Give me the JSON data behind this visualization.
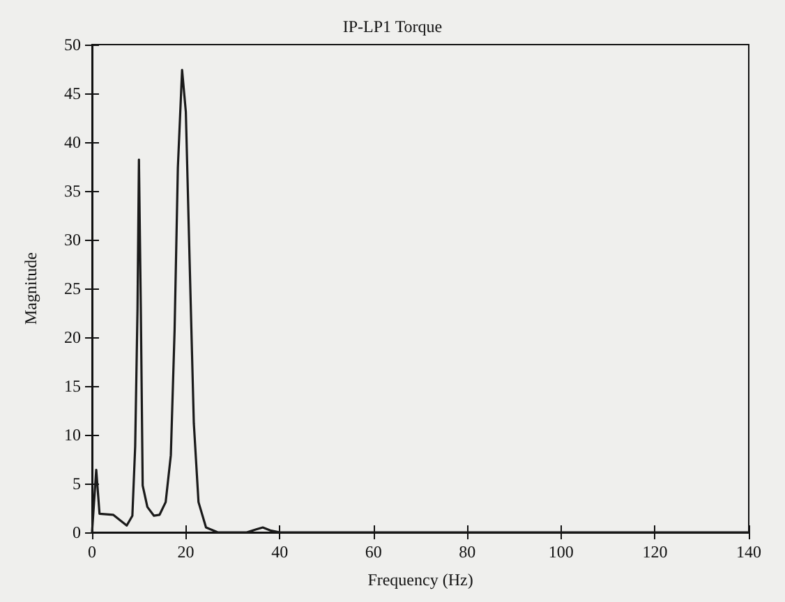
{
  "chart_data": {
    "type": "line",
    "title": "IP-LP1 Torque",
    "xlabel": "Frequency (Hz)",
    "ylabel": "Magnitude",
    "x": [
      0,
      0.9,
      1.6,
      4.5,
      7.4,
      8.6,
      9.2,
      9.7,
      10.0,
      10.4,
      10.8,
      11.8,
      13.2,
      14.4,
      15.7,
      16.8,
      17.6,
      18.3,
      19.2,
      20.0,
      20.8,
      21.7,
      22.7,
      24.3,
      26.8,
      33,
      35,
      36.4,
      38,
      40,
      60,
      140
    ],
    "series": [
      {
        "color": "#1a1a1a",
        "values": [
          0,
          6.4,
          1.9,
          1.8,
          0.7,
          1.7,
          8.8,
          23,
          38.2,
          23,
          4.8,
          2.6,
          1.7,
          1.8,
          3.1,
          7.9,
          20.7,
          37.4,
          47.4,
          43.1,
          27.9,
          11.2,
          3.1,
          0.5,
          0,
          0,
          0.3,
          0.5,
          0.2,
          0,
          0,
          0
        ]
      }
    ],
    "xlim": [
      0,
      140
    ],
    "xticks": [
      0,
      20,
      40,
      60,
      80,
      100,
      120,
      140
    ],
    "ylim": [
      0,
      50
    ],
    "yticks": [
      0,
      5,
      10,
      15,
      20,
      25,
      30,
      35,
      40,
      45,
      50
    ],
    "grid": false,
    "marker": "none",
    "line_style": "solid"
  }
}
